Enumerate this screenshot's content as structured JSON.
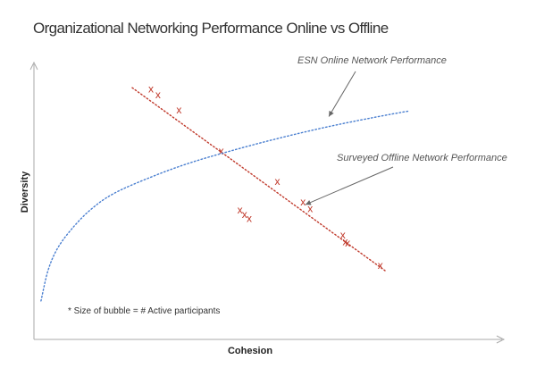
{
  "chart_data": {
    "type": "scatter",
    "title": "Organizational Networking Performance Online vs Offline",
    "xlabel": "Cohesion",
    "ylabel": "Diversity",
    "xlim": [
      0,
      100
    ],
    "ylim": [
      0,
      100
    ],
    "grid": false,
    "series": [
      {
        "name": "Surveyed Offline Network Performance",
        "marker": "x",
        "color": "#c0392b",
        "x": [
          25,
          26.5,
          31,
          40,
          44,
          45,
          46,
          52,
          57.5,
          59,
          66,
          66.5,
          67,
          74
        ],
        "y": [
          91,
          89,
          83.5,
          68.5,
          47,
          45.5,
          44,
          57.5,
          50,
          47.5,
          38,
          35.5,
          35,
          27
        ]
      },
      {
        "name": "Surveyed Offline Network Performance trend",
        "style": "dotted-line",
        "color": "#c0392b",
        "x": [
          21,
          75
        ],
        "y": [
          91.5,
          25
        ]
      },
      {
        "name": "ESN Online Network Performance",
        "style": "dotted-curve",
        "color": "#4a7fd0",
        "x": [
          1.5,
          3,
          5,
          8,
          12,
          17,
          25,
          33,
          42,
          52,
          62,
          72,
          80
        ],
        "y": [
          14,
          25,
          33,
          40,
          47,
          53,
          59,
          64,
          68.5,
          73,
          77,
          80.5,
          83
        ]
      }
    ],
    "annotations": [
      {
        "text": "ESN Online Network Performance",
        "arrow_to": [
          63,
          81
        ]
      },
      {
        "text": "Surveyed Offline Network Performance",
        "arrow_to": [
          58,
          49
        ]
      }
    ],
    "note": "* Size of bubble = # Active participants"
  }
}
